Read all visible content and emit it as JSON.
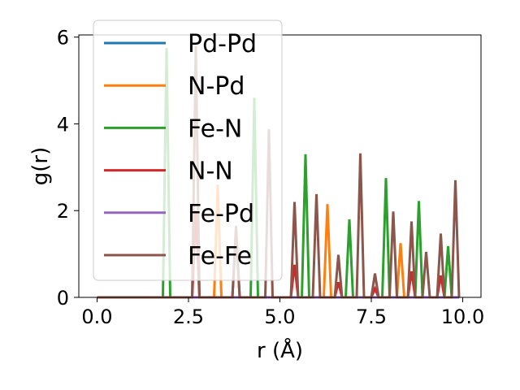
{
  "chart_data": {
    "type": "line",
    "title": "",
    "xlabel": "r (Å)",
    "ylabel": "g(r)",
    "xlim": [
      -0.5,
      10.5
    ],
    "ylim": [
      0,
      6.05
    ],
    "xticks": [
      0.0,
      2.5,
      5.0,
      7.5,
      10.0
    ],
    "xtick_labels": [
      "0.0",
      "2.5",
      "5.0",
      "7.5",
      "10.0"
    ],
    "yticks": [
      0,
      2,
      4,
      6
    ],
    "ytick_labels": [
      "0",
      "2",
      "4",
      "6"
    ],
    "grid": false,
    "legend_position": "top-left",
    "peak_halfwidth": 0.1,
    "series": [
      {
        "name": "Pd-Pd",
        "color": "#1f77b4",
        "peaks": []
      },
      {
        "name": "N-Pd",
        "color": "#ff7f0e",
        "peaks": [
          [
            3.3,
            2.6
          ],
          [
            6.3,
            2.15
          ],
          [
            8.3,
            1.25
          ]
        ]
      },
      {
        "name": "Fe-N",
        "color": "#2ca02c",
        "peaks": [
          [
            1.9,
            5.75
          ],
          [
            4.3,
            4.6
          ],
          [
            5.7,
            3.3
          ],
          [
            6.9,
            1.8
          ],
          [
            7.9,
            2.75
          ],
          [
            8.8,
            2.22
          ],
          [
            9.6,
            1.18
          ]
        ]
      },
      {
        "name": "N-N",
        "color": "#d62728",
        "peaks": [
          [
            2.7,
            2.0
          ],
          [
            3.8,
            1.5
          ],
          [
            5.4,
            0.75
          ],
          [
            6.6,
            0.35
          ],
          [
            7.6,
            0.2
          ],
          [
            8.6,
            0.6
          ],
          [
            9.4,
            0.5
          ]
        ]
      },
      {
        "name": "Fe-Pd",
        "color": "#9467bd",
        "peaks": []
      },
      {
        "name": "Fe-Fe",
        "color": "#8c564b",
        "peaks": [
          [
            2.7,
            5.8
          ],
          [
            3.8,
            1.65
          ],
          [
            4.7,
            3.88
          ],
          [
            5.4,
            2.2
          ],
          [
            6.0,
            2.38
          ],
          [
            6.6,
            0.98
          ],
          [
            7.2,
            3.32
          ],
          [
            7.6,
            0.55
          ],
          [
            8.1,
            1.98
          ],
          [
            8.6,
            1.75
          ],
          [
            9.0,
            1.05
          ],
          [
            9.4,
            1.47
          ],
          [
            9.8,
            2.7
          ]
        ]
      }
    ]
  }
}
